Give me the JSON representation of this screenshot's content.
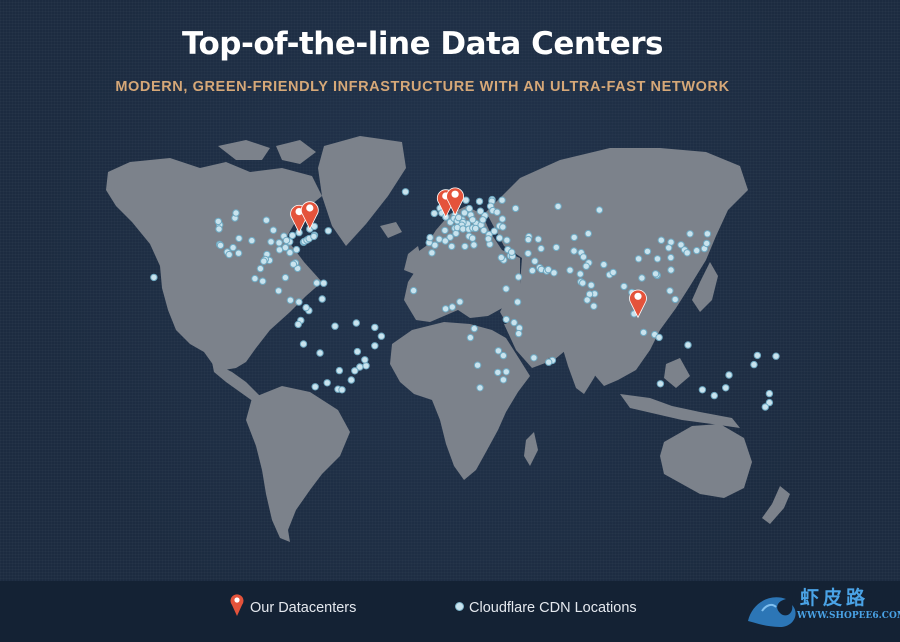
{
  "header": {
    "title": "Top-of-the-line Data Centers",
    "subtitle": "MODERN, GREEN-FRIENDLY INFRASTRUCTURE WITH AN ULTRA-FAST NETWORK"
  },
  "legend": {
    "datacenters_label": "Our Datacenters",
    "cdn_label": "Cloudflare CDN Locations"
  },
  "watermark": {
    "name": "虾皮路",
    "url": "WWW.SHOPEE6.COM"
  },
  "colors": {
    "background": "#1c2b40",
    "land": "#7c828b",
    "pin": "#e4533b",
    "cdn_dot": "#c9e3ee",
    "subtitle": "#d6a878",
    "footer": "#142234"
  },
  "icons": {
    "datacenter": "map-pin-icon",
    "cdn": "dot-icon",
    "brand": "dragon-logo-icon"
  },
  "map": {
    "datacenters": [
      {
        "lat": 43.7,
        "lon": -79.4
      },
      {
        "lat": 45.5,
        "lon": -73.6
      },
      {
        "lat": 51.5,
        "lon": -0.1
      },
      {
        "lat": 52.4,
        "lon": 4.9
      },
      {
        "lat": 1.35,
        "lon": 103.8
      }
    ],
    "cdn_locations": [
      [
        47.6,
        -122.3
      ],
      [
        45.5,
        -122.7
      ],
      [
        37.8,
        -122.4
      ],
      [
        37.3,
        -121.9
      ],
      [
        34.0,
        -118.2
      ],
      [
        32.7,
        -117.2
      ],
      [
        33.4,
        -112.1
      ],
      [
        36.2,
        -115.1
      ],
      [
        40.8,
        -111.9
      ],
      [
        39.7,
        -105.0
      ],
      [
        49.3,
        -123.1
      ],
      [
        51.0,
        -114.1
      ],
      [
        53.5,
        -113.5
      ],
      [
        49.9,
        -97.1
      ],
      [
        44.9,
        -93.3
      ],
      [
        41.9,
        -87.6
      ],
      [
        39.1,
        -94.6
      ],
      [
        32.8,
        -96.8
      ],
      [
        29.8,
        -95.4
      ],
      [
        30.3,
        -97.7
      ],
      [
        29.4,
        -98.5
      ],
      [
        35.1,
        -90.0
      ],
      [
        36.2,
        -86.8
      ],
      [
        39.1,
        -84.5
      ],
      [
        42.3,
        -83.0
      ],
      [
        39.8,
        -86.2
      ],
      [
        38.6,
        -90.2
      ],
      [
        33.7,
        -84.4
      ],
      [
        25.8,
        -80.2
      ],
      [
        28.5,
        -81.4
      ],
      [
        27.9,
        -82.5
      ],
      [
        35.2,
        -80.8
      ],
      [
        38.9,
        -77.0
      ],
      [
        39.3,
        -76.6
      ],
      [
        40.0,
        -75.2
      ],
      [
        40.7,
        -74.0
      ],
      [
        42.4,
        -71.1
      ],
      [
        41.8,
        -71.4
      ],
      [
        45.5,
        -73.6
      ],
      [
        43.7,
        -79.4
      ],
      [
        44.6,
        -63.6
      ],
      [
        46.8,
        -71.2
      ],
      [
        19.4,
        -99.1
      ],
      [
        20.7,
        -103.3
      ],
      [
        25.7,
        -100.3
      ],
      [
        21.2,
        -86.8
      ],
      [
        14.6,
        -90.5
      ],
      [
        9.9,
        -84.1
      ],
      [
        9.0,
        -79.5
      ],
      [
        18.5,
        -69.9
      ],
      [
        18.4,
        -66.1
      ],
      [
        10.5,
        -66.9
      ],
      [
        4.7,
        -74.1
      ],
      [
        6.2,
        -75.6
      ],
      [
        -0.2,
        -78.5
      ],
      [
        -2.2,
        -79.9
      ],
      [
        -12.0,
        -77.0
      ],
      [
        -16.5,
        -68.1
      ],
      [
        -33.4,
        -70.7
      ],
      [
        -34.6,
        -58.4
      ],
      [
        -31.4,
        -64.2
      ],
      [
        -34.9,
        -56.2
      ],
      [
        -25.3,
        -57.6
      ],
      [
        -23.5,
        -46.6
      ],
      [
        -22.9,
        -43.2
      ],
      [
        -19.9,
        -43.9
      ],
      [
        -15.8,
        -47.9
      ],
      [
        -25.4,
        -49.3
      ],
      [
        -30.0,
        -51.2
      ],
      [
        -12.9,
        -38.5
      ],
      [
        -8.1,
        -34.9
      ],
      [
        -3.7,
        -38.5
      ],
      [
        -1.5,
        -48.5
      ],
      [
        -3.1,
        -60.0
      ],
      [
        64.1,
        -21.9
      ],
      [
        53.3,
        -6.3
      ],
      [
        55.9,
        -3.2
      ],
      [
        53.5,
        -2.2
      ],
      [
        51.5,
        -0.1
      ],
      [
        48.9,
        2.4
      ],
      [
        45.8,
        4.8
      ],
      [
        43.3,
        5.4
      ],
      [
        44.8,
        -0.6
      ],
      [
        40.4,
        -3.7
      ],
      [
        41.4,
        2.2
      ],
      [
        39.5,
        -0.4
      ],
      [
        37.4,
        -6.0
      ],
      [
        38.7,
        -9.1
      ],
      [
        41.2,
        -8.6
      ],
      [
        52.4,
        4.9
      ],
      [
        50.8,
        4.4
      ],
      [
        49.6,
        6.1
      ],
      [
        50.1,
        8.7
      ],
      [
        48.1,
        11.6
      ],
      [
        52.5,
        13.4
      ],
      [
        53.6,
        10.0
      ],
      [
        51.2,
        6.8
      ],
      [
        48.8,
        9.2
      ],
      [
        47.4,
        8.5
      ],
      [
        46.2,
        6.1
      ],
      [
        45.5,
        9.2
      ],
      [
        41.9,
        12.5
      ],
      [
        40.9,
        14.3
      ],
      [
        37.5,
        15.1
      ],
      [
        45.4,
        12.3
      ],
      [
        48.2,
        16.4
      ],
      [
        50.1,
        14.4
      ],
      [
        47.5,
        19.0
      ],
      [
        52.2,
        21.0
      ],
      [
        50.1,
        19.9
      ],
      [
        54.4,
        18.6
      ],
      [
        46.0,
        14.5
      ],
      [
        45.8,
        16.0
      ],
      [
        44.8,
        20.5
      ],
      [
        42.7,
        23.3
      ],
      [
        44.4,
        26.1
      ],
      [
        47.0,
        28.9
      ],
      [
        50.5,
        30.5
      ],
      [
        46.5,
        30.7
      ],
      [
        37.9,
        23.7
      ],
      [
        40.6,
        22.9
      ],
      [
        35.2,
        33.4
      ],
      [
        41.0,
        29.0
      ],
      [
        39.9,
        32.9
      ],
      [
        55.7,
        12.6
      ],
      [
        59.9,
        10.8
      ],
      [
        59.3,
        18.1
      ],
      [
        60.2,
        24.9
      ],
      [
        59.4,
        24.8
      ],
      [
        56.9,
        24.1
      ],
      [
        54.7,
        25.3
      ],
      [
        53.9,
        27.6
      ],
      [
        55.8,
        37.6
      ],
      [
        59.9,
        30.3
      ],
      [
        56.8,
        60.6
      ],
      [
        55.0,
        82.9
      ],
      [
        43.1,
        131.9
      ],
      [
        41.7,
        44.8
      ],
      [
        40.2,
        44.5
      ],
      [
        40.4,
        49.9
      ],
      [
        43.2,
        76.9
      ],
      [
        41.3,
        69.3
      ],
      [
        32.1,
        34.8
      ],
      [
        31.9,
        35.9
      ],
      [
        33.9,
        35.5
      ],
      [
        33.3,
        44.4
      ],
      [
        29.4,
        48.0
      ],
      [
        26.2,
        50.6
      ],
      [
        25.3,
        51.5
      ],
      [
        24.5,
        54.4
      ],
      [
        25.2,
        55.3
      ],
      [
        23.6,
        58.4
      ],
      [
        24.7,
        46.7
      ],
      [
        21.5,
        39.2
      ],
      [
        35.7,
        51.4
      ],
      [
        36.3,
        59.6
      ],
      [
        34.5,
        69.2
      ],
      [
        33.7,
        73.1
      ],
      [
        31.5,
        74.3
      ],
      [
        24.9,
        67.0
      ],
      [
        28.6,
        77.2
      ],
      [
        26.9,
        75.8
      ],
      [
        23.0,
        72.6
      ],
      [
        19.1,
        72.9
      ],
      [
        18.5,
        73.9
      ],
      [
        17.4,
        78.5
      ],
      [
        13.1,
        80.3
      ],
      [
        12.9,
        77.6
      ],
      [
        10.0,
        76.3
      ],
      [
        22.6,
        88.4
      ],
      [
        27.7,
        85.3
      ],
      [
        23.8,
        90.4
      ],
      [
        6.9,
        79.9
      ],
      [
        16.8,
        96.2
      ],
      [
        13.8,
        100.5
      ],
      [
        21.0,
        105.9
      ],
      [
        10.8,
        106.7
      ],
      [
        11.6,
        104.9
      ],
      [
        3.1,
        101.7
      ],
      [
        -6.2,
        106.8
      ],
      [
        -7.3,
        112.8
      ],
      [
        -8.7,
        115.2
      ],
      [
        14.6,
        121.0
      ],
      [
        10.3,
        123.9
      ],
      [
        22.3,
        114.2
      ],
      [
        22.5,
        114.0
      ],
      [
        23.1,
        113.3
      ],
      [
        25.0,
        121.6
      ],
      [
        31.2,
        121.5
      ],
      [
        30.6,
        114.3
      ],
      [
        30.6,
        104.1
      ],
      [
        34.3,
        108.9
      ],
      [
        39.9,
        116.4
      ],
      [
        38.9,
        121.6
      ],
      [
        36.1,
        120.4
      ],
      [
        37.6,
        127.0
      ],
      [
        35.1,
        129.0
      ],
      [
        33.6,
        130.4
      ],
      [
        34.7,
        135.5
      ],
      [
        35.7,
        139.7
      ],
      [
        43.1,
        141.3
      ],
      [
        38.3,
        140.9
      ],
      [
        36.8,
        3.1
      ],
      [
        36.8,
        10.2
      ],
      [
        33.6,
        -7.6
      ],
      [
        30.0,
        31.2
      ],
      [
        31.2,
        29.9
      ],
      [
        15.6,
        32.5
      ],
      [
        14.7,
        -17.5
      ],
      [
        6.5,
        3.4
      ],
      [
        5.6,
        -0.2
      ],
      [
        9.1,
        7.5
      ],
      [
        9.0,
        38.7
      ],
      [
        -1.3,
        36.8
      ],
      [
        -4.0,
        39.7
      ],
      [
        0.3,
        32.6
      ],
      [
        -6.8,
        39.3
      ],
      [
        -4.3,
        15.3
      ],
      [
        -8.8,
        13.2
      ],
      [
        -15.4,
        28.3
      ],
      [
        -17.8,
        31.0
      ],
      [
        -25.9,
        32.6
      ],
      [
        -22.6,
        17.1
      ],
      [
        -26.2,
        28.0
      ],
      [
        -29.9,
        31.0
      ],
      [
        -33.9,
        18.4
      ],
      [
        -20.2,
        57.5
      ],
      [
        -18.9,
        47.5
      ],
      [
        -21.1,
        55.5
      ],
      [
        -31.9,
        115.9
      ],
      [
        -34.9,
        138.6
      ],
      [
        -37.8,
        145.0
      ],
      [
        -33.9,
        151.2
      ],
      [
        -27.5,
        153.0
      ],
      [
        -12.5,
        130.8
      ],
      [
        -36.8,
        174.8
      ],
      [
        -41.3,
        174.8
      ],
      [
        -43.5,
        172.6
      ],
      [
        -17.7,
        168.3
      ],
      [
        -22.3,
        166.5
      ],
      [
        -18.1,
        178.4
      ],
      [
        21.3,
        -157.9
      ]
    ]
  }
}
